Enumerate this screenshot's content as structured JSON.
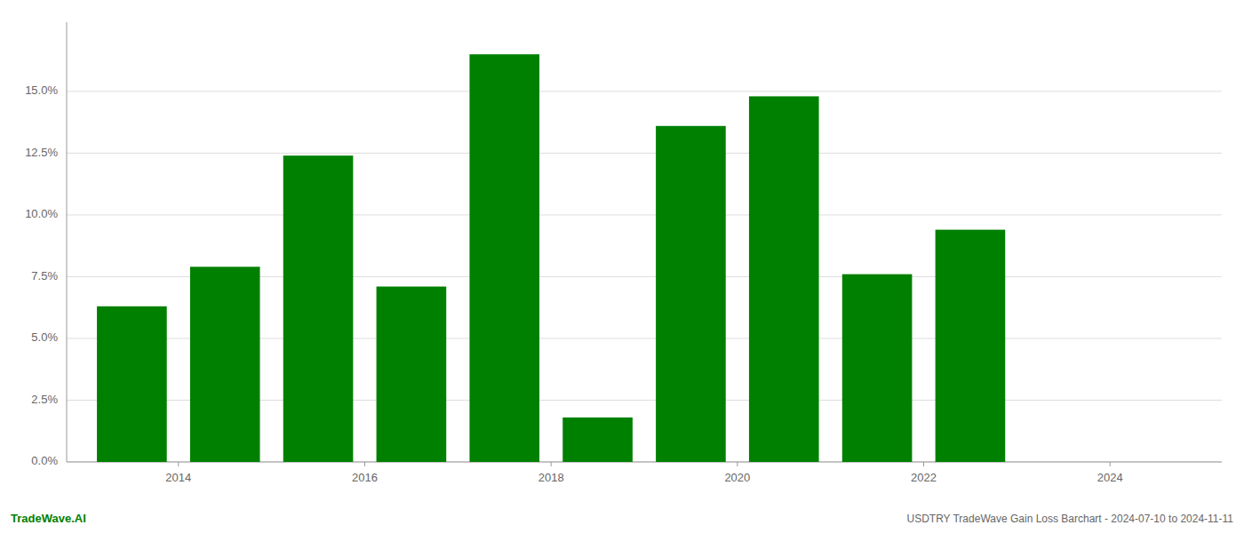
{
  "chart_data": {
    "type": "bar",
    "x": [
      2013.5,
      2014.5,
      2015.5,
      2016.5,
      2017.5,
      2018.5,
      2019.5,
      2020.5,
      2021.5,
      2022.5
    ],
    "values": [
      0.063,
      0.079,
      0.124,
      0.071,
      0.165,
      0.018,
      0.136,
      0.148,
      0.076,
      0.094
    ],
    "color": "#008000",
    "xlim": [
      2012.8,
      2025.2
    ],
    "xticks": [
      2014,
      2016,
      2018,
      2020,
      2022,
      2024
    ],
    "ylim": [
      0,
      0.178
    ],
    "yticks": [
      {
        "value": 0.0,
        "label": "0.0%"
      },
      {
        "value": 0.025,
        "label": "2.5%"
      },
      {
        "value": 0.05,
        "label": "5.0%"
      },
      {
        "value": 0.075,
        "label": "7.5%"
      },
      {
        "value": 0.1,
        "label": "10.0%"
      },
      {
        "value": 0.125,
        "label": "12.5%"
      },
      {
        "value": 0.15,
        "label": "15.0%"
      }
    ],
    "grid": true,
    "annotations": [
      "TradeWave.AI",
      "USDTRY TradeWave Gain Loss Barchart - 2024-07-10 to 2024-11-11"
    ]
  }
}
